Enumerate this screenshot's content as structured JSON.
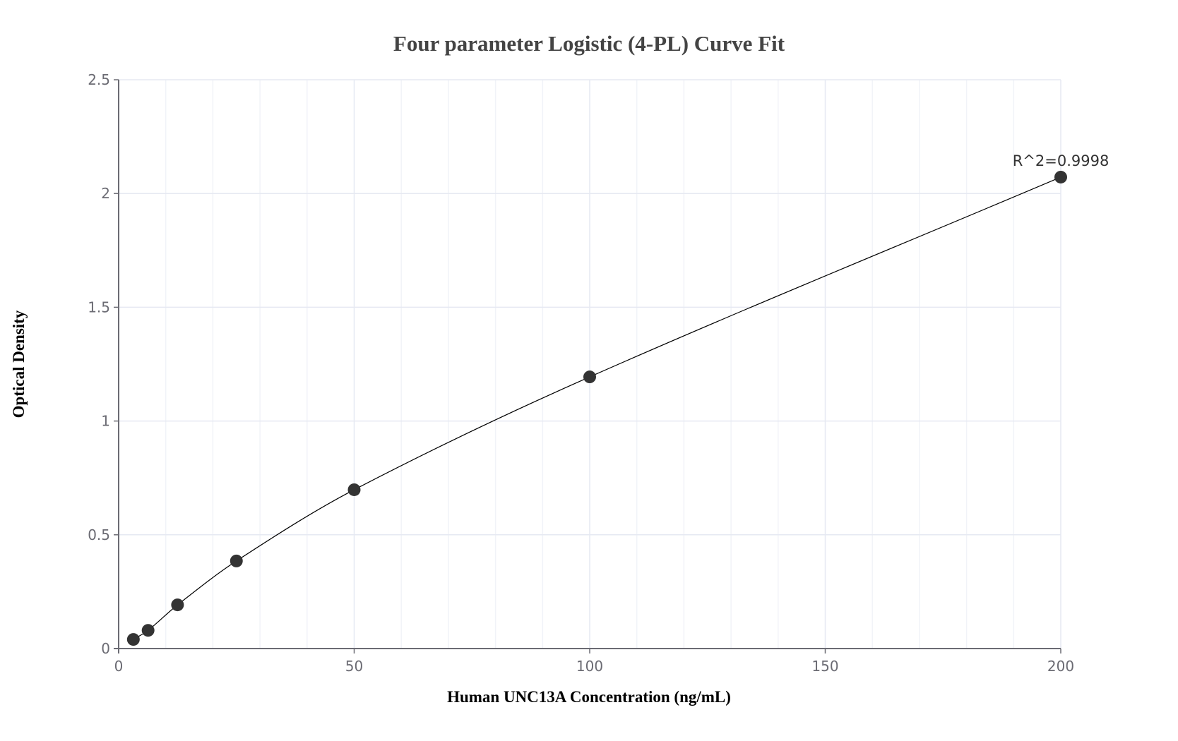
{
  "chart_data": {
    "type": "scatter",
    "title": "Four parameter Logistic (4-PL) Curve Fit",
    "xlabel": "Human UNC13A Concentration (ng/mL)",
    "ylabel": "Optical Density",
    "xlim": [
      0,
      200
    ],
    "ylim": [
      0,
      2.5
    ],
    "x_ticks": [
      0,
      50,
      100,
      150,
      200
    ],
    "y_ticks": [
      0,
      0.5,
      1,
      1.5,
      2,
      2.5
    ],
    "x_tick_labels": [
      "0",
      "50",
      "100",
      "150",
      "200"
    ],
    "y_tick_labels": [
      "0",
      "0.5",
      "1",
      "1.5",
      "2",
      "2.5"
    ],
    "x_minor_step": 10,
    "grid": true,
    "legend": null,
    "series": [
      {
        "name": "Standards",
        "kind": "markers",
        "x": [
          3.125,
          6.25,
          12.5,
          25,
          50,
          100,
          200
        ],
        "y": [
          0.04,
          0.08,
          0.192,
          0.385,
          0.698,
          1.194,
          2.072
        ]
      },
      {
        "name": "4-PL fit",
        "kind": "line"
      }
    ],
    "annotations": [
      {
        "text": "R^2=0.9998",
        "x": 200,
        "y": 2.072
      }
    ]
  },
  "colors": {
    "marker": "#333333",
    "line": "#000000",
    "grid": "#e6e9f2",
    "axis": "#6b6b73",
    "title": "#444444"
  }
}
